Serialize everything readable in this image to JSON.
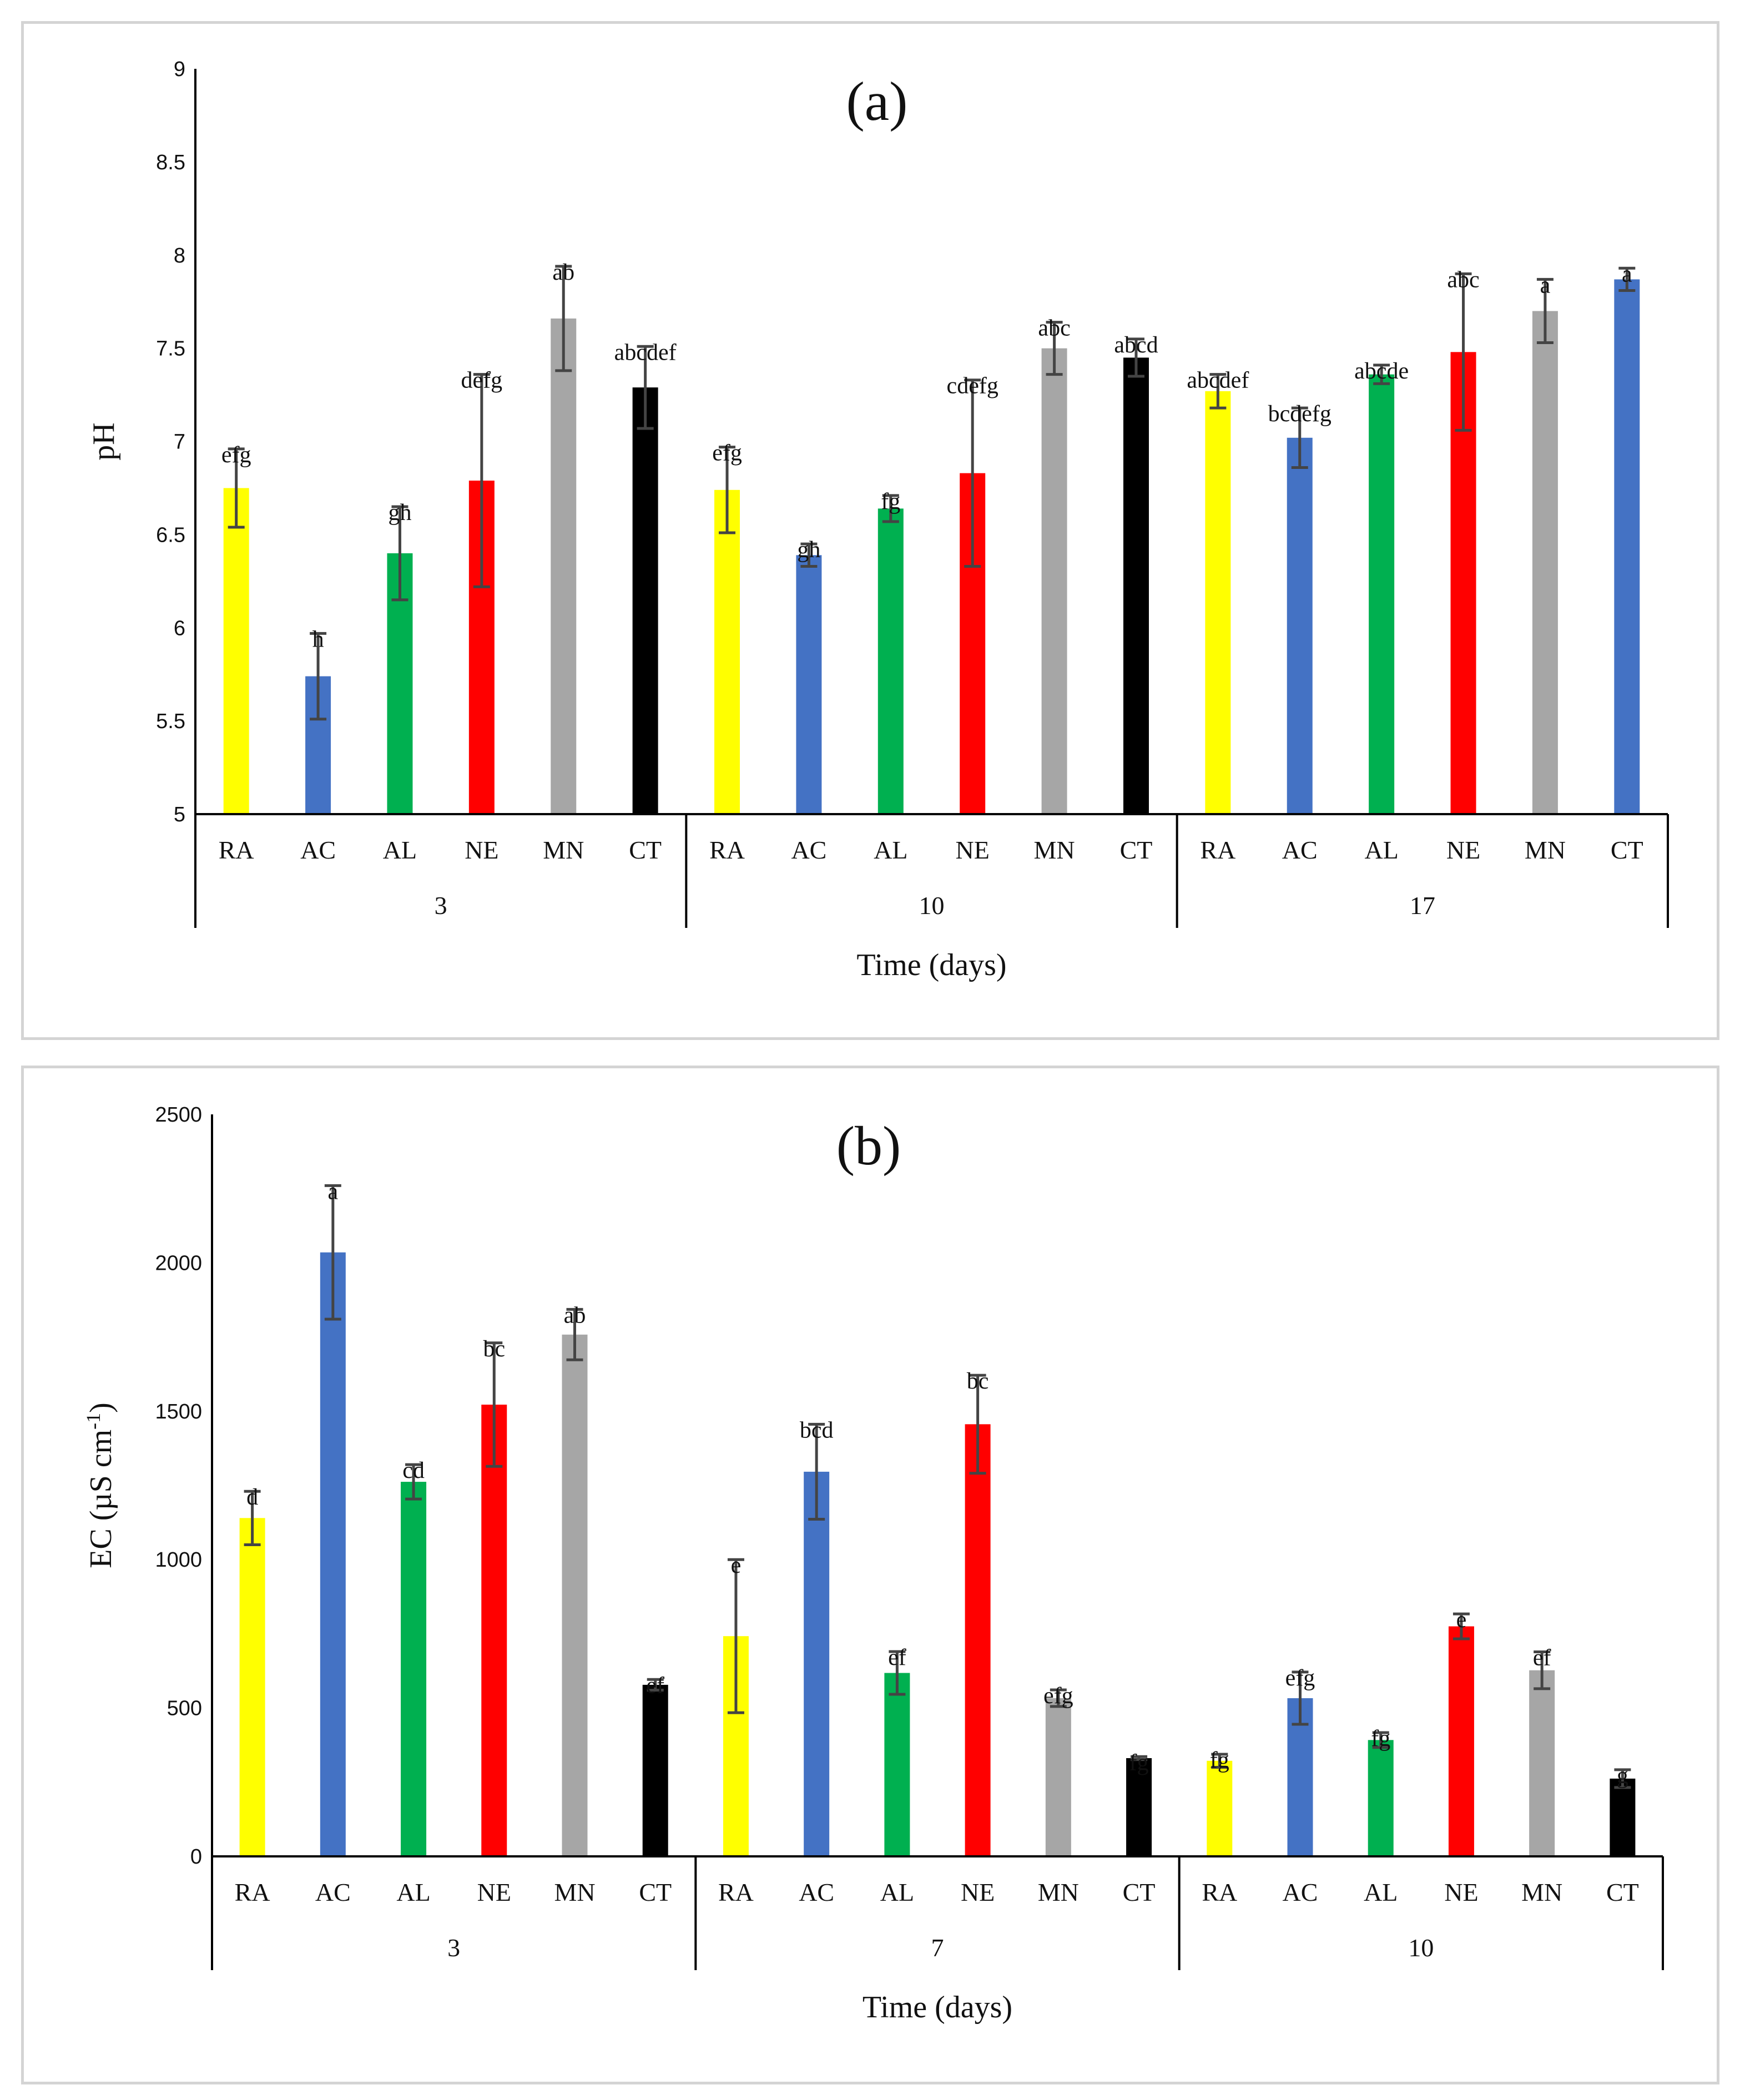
{
  "chart_data": [
    {
      "type": "bar",
      "title": "(a)",
      "xlabel": "Time (days)",
      "ylabel": "pH",
      "ylim": [
        5,
        9
      ],
      "yticks": [
        "5",
        "5.5",
        "6",
        "6.5",
        "7",
        "7.5",
        "8",
        "8.5",
        "9"
      ],
      "treatments": [
        "RA",
        "AC",
        "AL",
        "NE",
        "MN",
        "CT"
      ],
      "groups": [
        {
          "label": "3",
          "colors": [
            "#ffff00",
            "#4472c4",
            "#00b050",
            "#ff0000",
            "#a6a6a6",
            "#000000"
          ],
          "values": [
            6.75,
            5.74,
            6.4,
            6.79,
            7.66,
            7.29
          ],
          "errors": [
            0.21,
            0.23,
            0.25,
            0.57,
            0.28,
            0.22
          ],
          "letters": [
            "efg",
            "h",
            "gh",
            "defg",
            "ab",
            "abcdef"
          ]
        },
        {
          "label": "10",
          "colors": [
            "#ffff00",
            "#4472c4",
            "#00b050",
            "#ff0000",
            "#a6a6a6",
            "#000000"
          ],
          "values": [
            6.74,
            6.39,
            6.64,
            6.83,
            7.5,
            7.45
          ],
          "errors": [
            0.23,
            0.06,
            0.07,
            0.5,
            0.14,
            0.1
          ],
          "letters": [
            "efg",
            "gh",
            "fg",
            "cdefg",
            "abc",
            "abcd"
          ]
        },
        {
          "label": "17",
          "colors": [
            "#ffff00",
            "#4472c4",
            "#00b050",
            "#ff0000",
            "#a6a6a6",
            "#4472c4"
          ],
          "values": [
            7.27,
            7.02,
            7.36,
            7.48,
            7.7,
            7.87
          ],
          "errors": [
            0.09,
            0.16,
            0.05,
            0.42,
            0.17,
            0.06
          ],
          "letters": [
            "abcdef",
            "bcdefg",
            "abcde",
            "abc",
            "a",
            "a"
          ]
        }
      ]
    },
    {
      "type": "bar",
      "title": "(b)",
      "xlabel": "Time (days)",
      "ylabel": "EC (µS cm",
      "ylabel_sup": "-1",
      "ylabel_close": ")",
      "ylim": [
        0,
        2500
      ],
      "yticks": [
        "0",
        "500",
        "1000",
        "1500",
        "2000",
        "2500"
      ],
      "treatments": [
        "RA",
        "AC",
        "AL",
        "NE",
        "MN",
        "CT"
      ],
      "groups": [
        {
          "label": "3",
          "colors": [
            "#ffff00",
            "#4472c4",
            "#00b050",
            "#ff0000",
            "#a6a6a6",
            "#000000"
          ],
          "values": [
            1140,
            2035,
            1262,
            1522,
            1758,
            578
          ],
          "errors": [
            90,
            225,
            58,
            208,
            85,
            18
          ],
          "letters": [
            "d",
            "a",
            "cd",
            "bc",
            "ab",
            "ef"
          ]
        },
        {
          "label": "7",
          "colors": [
            "#ffff00",
            "#4472c4",
            "#00b050",
            "#ff0000",
            "#a6a6a6",
            "#000000"
          ],
          "values": [
            742,
            1296,
            618,
            1456,
            533,
            331
          ],
          "errors": [
            258,
            160,
            72,
            165,
            28,
            5
          ],
          "letters": [
            "e",
            "bcd",
            "ef",
            "bc",
            "efg",
            "fg"
          ]
        },
        {
          "label": "10",
          "colors": [
            "#ffff00",
            "#4472c4",
            "#00b050",
            "#ff0000",
            "#a6a6a6",
            "#000000"
          ],
          "values": [
            322,
            533,
            392,
            775,
            627,
            262
          ],
          "errors": [
            22,
            88,
            25,
            42,
            62,
            30
          ],
          "letters": [
            "fg",
            "efg",
            "fg",
            "e",
            "ef",
            "g"
          ]
        }
      ]
    }
  ]
}
